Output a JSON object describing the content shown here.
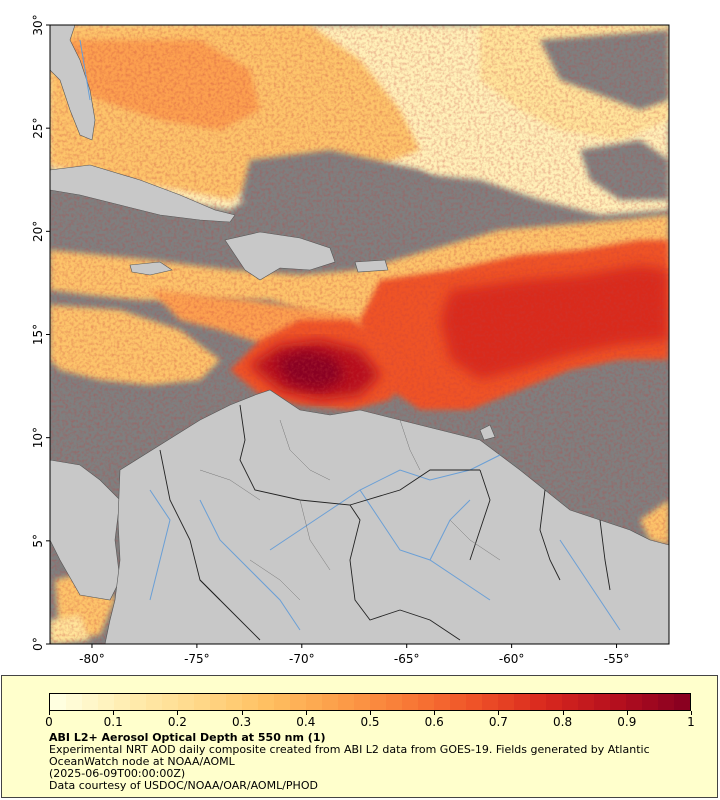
{
  "map": {
    "lat_ticks": [
      "0°",
      "5°",
      "10°",
      "15°",
      "20°",
      "25°",
      "30°"
    ],
    "lon_ticks": [
      "-80°",
      "-75°",
      "-70°",
      "-65°",
      "-60°",
      "-55°"
    ],
    "lat_range": [
      0,
      30
    ],
    "lon_range": [
      -82,
      -52.5
    ],
    "colors": {
      "nodata": "#7f7f7f",
      "land": "#c8c8c8",
      "river": "#6a9fd6",
      "border": "#222222"
    }
  },
  "legend": {
    "title": "ABI L2+ Aerosol Optical Depth at 550 nm (1)",
    "desc1": "Experimental NRT AOD daily composite created from ABI L2 data from GOES-19. Fields generated by Atlantic OceanWatch node at NOAA/AOML",
    "desc2": "(2025-06-09T00:00:00Z)",
    "credit": "Data courtesy of USDOC/NOAA/OAR/AOML/PHOD",
    "scale_min": 0,
    "scale_max": 1,
    "tick_labels": [
      "0",
      "0.1",
      "0.2",
      "0.3",
      "0.4",
      "0.5",
      "0.6",
      "0.7",
      "0.8",
      "0.9",
      "1"
    ],
    "colors": [
      "#ffffe0",
      "#ffedb0",
      "#ffd98a",
      "#ffc062",
      "#fca04a",
      "#f97b37",
      "#ef5328",
      "#d9291e",
      "#b7101e",
      "#8a0020"
    ]
  }
}
